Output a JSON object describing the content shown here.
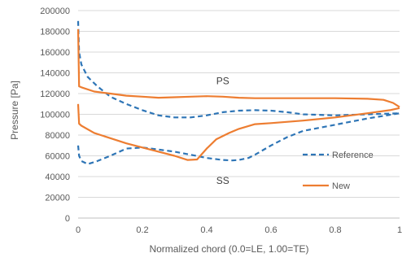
{
  "chart_data": {
    "type": "line",
    "xlabel": "Normalized chord (0.0=LE, 1.00=TE)",
    "ylabel": "Pressure [Pa]",
    "xlim": [
      0,
      1
    ],
    "ylim": [
      0,
      200000
    ],
    "xticks": [
      0,
      0.2,
      0.4,
      0.6,
      0.8,
      1
    ],
    "xtick_labels": [
      "0",
      "0.2",
      "0.4",
      "0.6",
      "0.8",
      "1"
    ],
    "yticks": [
      0,
      20000,
      40000,
      60000,
      80000,
      100000,
      120000,
      140000,
      160000,
      180000,
      200000
    ],
    "ytick_labels": [
      "0",
      "20000",
      "40000",
      "60000",
      "80000",
      "100000",
      "120000",
      "140000",
      "160000",
      "180000",
      "200000"
    ],
    "grid": "horizontal",
    "legend_placement": "right",
    "annotations": [
      {
        "text": "PS",
        "x": 0.45,
        "y": 132000
      },
      {
        "text": "SS",
        "x": 0.45,
        "y": 36000
      }
    ],
    "series": [
      {
        "name": "Reference",
        "color": "#2e75b6",
        "style": "dashed",
        "curves": [
          {
            "x": [
              0.0,
              0.003,
              0.01,
              0.03,
              0.06,
              0.1,
              0.15,
              0.2,
              0.25,
              0.3,
              0.35,
              0.4,
              0.45,
              0.5,
              0.55,
              0.6,
              0.65,
              0.7,
              0.8,
              0.9,
              1.0
            ],
            "y": [
              190000,
              160000,
              148000,
              136000,
              127000,
              117000,
              110000,
              104000,
              99000,
              97000,
              97000,
              99000,
              102000,
              103500,
              104000,
              103500,
              102000,
              100000,
              99000,
              100000,
              101000
            ]
          },
          {
            "x": [
              0.0,
              0.003,
              0.01,
              0.03,
              0.06,
              0.1,
              0.15,
              0.2,
              0.25,
              0.3,
              0.35,
              0.4,
              0.45,
              0.48,
              0.5,
              0.53,
              0.55,
              0.6,
              0.65,
              0.7,
              0.8,
              0.9,
              1.0
            ],
            "y": [
              70000,
              60000,
              55000,
              52000,
              55000,
              60000,
              67000,
              68000,
              66000,
              64000,
              61000,
              58000,
              56000,
              55500,
              56000,
              58000,
              61000,
              70000,
              78000,
              84000,
              90000,
              96000,
              101000
            ]
          }
        ]
      },
      {
        "name": "New",
        "color": "#ed7d31",
        "style": "solid",
        "curves": [
          {
            "x": [
              0.0,
              0.003,
              0.01,
              0.05,
              0.1,
              0.15,
              0.2,
              0.25,
              0.3,
              0.35,
              0.4,
              0.45,
              0.5,
              0.55,
              0.6,
              0.7,
              0.8,
              0.9,
              0.95,
              0.98,
              1.0
            ],
            "y": [
              182000,
              127000,
              126000,
              122000,
              120000,
              118000,
              117000,
              116000,
              116500,
              117000,
              117500,
              117000,
              116000,
              115500,
              115500,
              115500,
              115500,
              115000,
              114000,
              111000,
              107000
            ]
          },
          {
            "x": [
              0.0,
              0.003,
              0.01,
              0.05,
              0.1,
              0.15,
              0.2,
              0.25,
              0.3,
              0.34,
              0.37,
              0.4,
              0.43,
              0.47,
              0.5,
              0.55,
              0.6,
              0.7,
              0.8,
              0.9,
              0.97,
              1.0
            ],
            "y": [
              110000,
              91000,
              89000,
              82000,
              77000,
              72000,
              68000,
              64000,
              60000,
              56000,
              56500,
              67000,
              76000,
              82000,
              86000,
              90500,
              91500,
              94000,
              97000,
              101000,
              104000,
              106000
            ]
          }
        ]
      }
    ]
  }
}
